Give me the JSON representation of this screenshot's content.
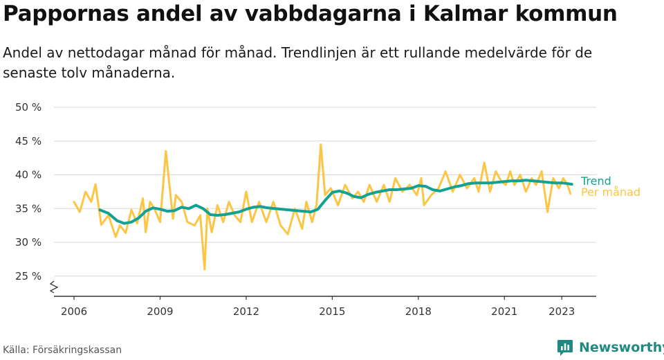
{
  "title": "Pappornas andel av vabbdagarna i Kalmar kommun",
  "subtitle": "Andel av nettodagar månad för månad. Trendlinjen är ett rullande medelvärde för de senaste tolv månaderna.",
  "source": "Källa: Försäkringskassan",
  "brand": {
    "name": "Newsworthy",
    "icon": "newsworthy-logo-icon"
  },
  "colors": {
    "trend": "#13a194",
    "monthly": "#fcc543",
    "grid": "#d9d9d9",
    "axis": "#333333",
    "brand": "#1f8a82"
  },
  "chart_data": {
    "type": "line",
    "x_unit": "year (decimal)",
    "xlim": [
      2005.3,
      2024.2
    ],
    "ylim": [
      22,
      50
    ],
    "x_ticks": [
      2006,
      2009,
      2012,
      2015,
      2018,
      2021,
      2023
    ],
    "x_tick_labels": [
      "2006",
      "2009",
      "2012",
      "2015",
      "2018",
      "2021",
      "2023"
    ],
    "y_ticks": [
      25,
      30,
      35,
      40,
      45,
      50
    ],
    "y_tick_labels": [
      "25 %",
      "30 %",
      "35 %",
      "40 %",
      "45 %",
      "50 %"
    ],
    "y_axis_break": true,
    "grid": "horizontal",
    "series": [
      {
        "name": "Trend",
        "color": "#13a194",
        "x": [
          2006.9,
          2007.2,
          2007.5,
          2007.75,
          2008.0,
          2008.25,
          2008.5,
          2008.75,
          2009.0,
          2009.25,
          2009.5,
          2009.75,
          2010.0,
          2010.25,
          2010.5,
          2010.75,
          2011.0,
          2011.25,
          2011.5,
          2011.75,
          2012.0,
          2012.25,
          2012.5,
          2012.75,
          2013.0,
          2013.25,
          2013.5,
          2013.75,
          2014.0,
          2014.25,
          2014.5,
          2014.75,
          2015.0,
          2015.25,
          2015.5,
          2015.75,
          2016.0,
          2016.25,
          2016.5,
          2016.75,
          2017.0,
          2017.25,
          2017.5,
          2017.75,
          2018.0,
          2018.25,
          2018.5,
          2018.75,
          2019.0,
          2019.25,
          2019.5,
          2019.75,
          2020.0,
          2020.25,
          2020.5,
          2020.75,
          2021.0,
          2021.25,
          2021.5,
          2021.75,
          2022.0,
          2022.25,
          2022.5,
          2022.75,
          2023.0,
          2023.2,
          2023.35
        ],
        "values": [
          34.8,
          34.3,
          33.2,
          32.8,
          33.0,
          33.6,
          34.6,
          35.1,
          34.9,
          34.6,
          34.7,
          35.2,
          35.0,
          35.5,
          35.0,
          34.1,
          34.0,
          34.1,
          34.3,
          34.5,
          34.9,
          35.2,
          35.3,
          35.1,
          35.0,
          34.9,
          34.8,
          34.7,
          34.6,
          34.5,
          34.9,
          36.2,
          37.4,
          37.6,
          37.3,
          36.8,
          36.6,
          37.1,
          37.4,
          37.6,
          37.8,
          37.8,
          37.9,
          38.0,
          38.4,
          38.3,
          37.8,
          37.6,
          37.9,
          38.2,
          38.4,
          38.7,
          38.8,
          38.8,
          38.8,
          38.9,
          39.0,
          39.1,
          39.1,
          39.2,
          39.1,
          39.0,
          38.9,
          38.8,
          38.8,
          38.7,
          38.6
        ]
      },
      {
        "name": "Per månad",
        "color": "#fcc543",
        "x": [
          2006.0,
          2006.2,
          2006.4,
          2006.6,
          2006.75,
          2006.95,
          2007.2,
          2007.45,
          2007.6,
          2007.8,
          2008.0,
          2008.2,
          2008.4,
          2008.5,
          2008.65,
          2008.8,
          2009.0,
          2009.2,
          2009.45,
          2009.55,
          2009.75,
          2009.95,
          2010.2,
          2010.4,
          2010.55,
          2010.65,
          2010.8,
          2011.0,
          2011.2,
          2011.4,
          2011.6,
          2011.8,
          2012.0,
          2012.2,
          2012.45,
          2012.7,
          2012.95,
          2013.2,
          2013.45,
          2013.7,
          2013.95,
          2014.1,
          2014.3,
          2014.45,
          2014.6,
          2014.75,
          2014.95,
          2015.2,
          2015.45,
          2015.7,
          2015.9,
          2016.1,
          2016.3,
          2016.55,
          2016.8,
          2017.0,
          2017.2,
          2017.45,
          2017.7,
          2017.95,
          2018.1,
          2018.2,
          2018.45,
          2018.7,
          2018.95,
          2019.2,
          2019.45,
          2019.7,
          2019.95,
          2020.1,
          2020.3,
          2020.5,
          2020.7,
          2020.9,
          2021.05,
          2021.2,
          2021.35,
          2021.55,
          2021.75,
          2021.95,
          2022.1,
          2022.3,
          2022.5,
          2022.7,
          2022.9,
          2023.05,
          2023.2,
          2023.3
        ],
        "values": [
          36.0,
          34.5,
          37.5,
          36.0,
          38.6,
          32.6,
          34.0,
          30.8,
          32.5,
          31.4,
          34.8,
          32.8,
          36.5,
          31.5,
          36.0,
          35.0,
          33.0,
          43.5,
          33.5,
          37.0,
          36.0,
          33.0,
          32.5,
          34.0,
          26.0,
          35.0,
          31.5,
          35.5,
          33.0,
          36.0,
          34.0,
          33.0,
          37.5,
          33.0,
          36.0,
          33.0,
          36.0,
          32.5,
          31.2,
          35.0,
          32.0,
          36.0,
          33.0,
          35.5,
          44.5,
          37.0,
          38.0,
          35.5,
          38.5,
          36.5,
          37.5,
          36.0,
          38.5,
          36.0,
          38.5,
          36.0,
          39.5,
          37.5,
          38.5,
          37.0,
          39.5,
          35.5,
          37.0,
          38.0,
          40.5,
          37.5,
          40.0,
          38.0,
          39.5,
          37.5,
          41.8,
          37.5,
          40.5,
          39.0,
          38.5,
          40.5,
          38.5,
          40.0,
          37.5,
          39.5,
          38.5,
          40.5,
          34.5,
          39.5,
          38.0,
          39.5,
          38.5,
          37.2
        ]
      }
    ]
  }
}
